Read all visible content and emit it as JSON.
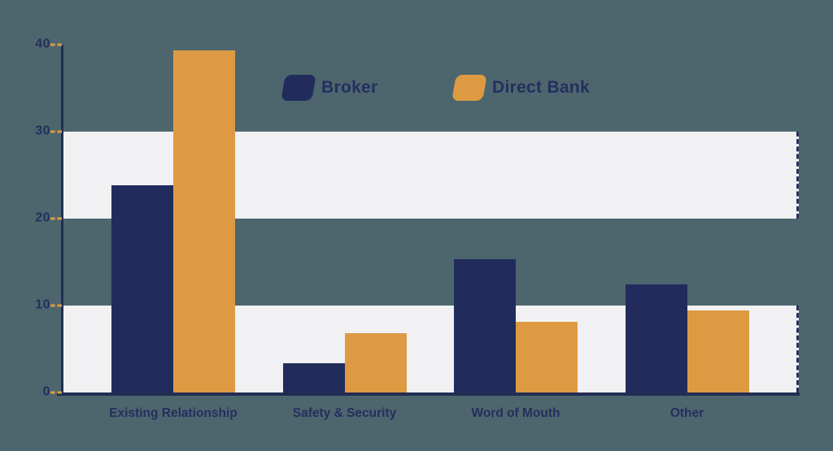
{
  "colors": {
    "background": "#4d666e",
    "broker": "#212c5c",
    "direct_bank": "#de9a43",
    "band": "#f1f1f4",
    "band_edge": "#2a3357",
    "axis": "#232d54",
    "tick_dash": "#de9a43",
    "text": "#232f5e"
  },
  "legend": {
    "items": [
      {
        "label": "Broker",
        "color_key": "broker"
      },
      {
        "label": "Direct Bank",
        "color_key": "direct_bank"
      }
    ]
  },
  "chart_data": {
    "type": "bar",
    "title": "",
    "xlabel": "",
    "ylabel": "",
    "categories": [
      "Existing Relationship",
      "Safety & Security",
      "Word of Mouth",
      "Other"
    ],
    "series": [
      {
        "name": "Broker",
        "color_key": "broker",
        "values": [
          23.8,
          3.4,
          15.3,
          12.4
        ]
      },
      {
        "name": "Direct Bank",
        "color_key": "direct_bank",
        "values": [
          39.3,
          6.8,
          8.1,
          9.4
        ]
      }
    ],
    "ylim": [
      0,
      40
    ],
    "yticks": [
      0,
      10,
      20,
      30,
      40
    ],
    "grid_bands": [
      [
        0,
        10
      ],
      [
        20,
        30
      ]
    ],
    "grid": "horizontal-bands",
    "legend_position": "top-center"
  }
}
